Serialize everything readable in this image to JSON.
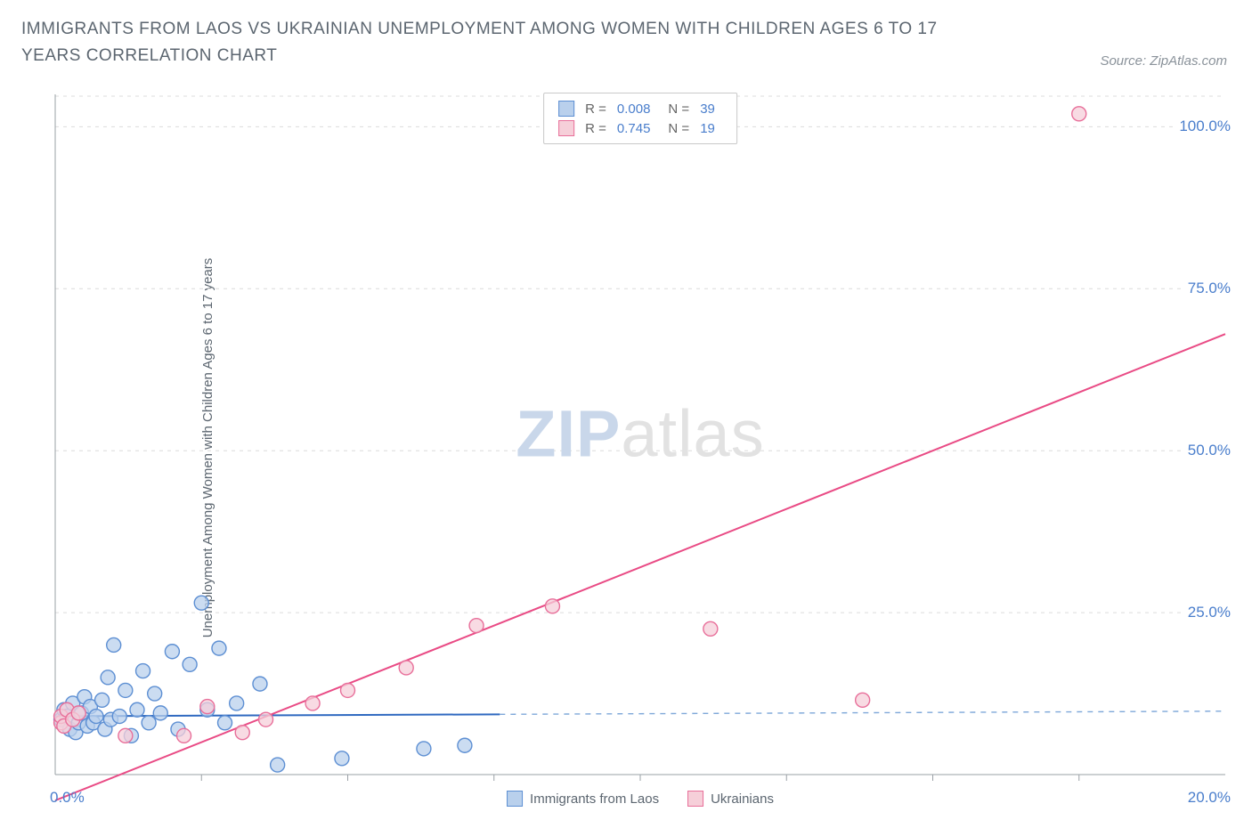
{
  "title": "IMMIGRANTS FROM LAOS VS UKRAINIAN UNEMPLOYMENT AMONG WOMEN WITH CHILDREN AGES 6 TO 17 YEARS CORRELATION CHART",
  "source": "Source: ZipAtlas.com",
  "ylabel": "Unemployment Among Women with Children Ages 6 to 17 years",
  "watermark": {
    "zip": "ZIP",
    "atlas": "atlas"
  },
  "chart": {
    "type": "scatter",
    "background_color": "#ffffff",
    "xlim": [
      0,
      20
    ],
    "ylim": [
      0,
      105
    ],
    "x_axis_min_label": "0.0%",
    "x_axis_max_label": "20.0%",
    "yticks": [
      {
        "v": 25,
        "label": "25.0%"
      },
      {
        "v": 50,
        "label": "50.0%"
      },
      {
        "v": 75,
        "label": "75.0%"
      },
      {
        "v": 100,
        "label": "100.0%"
      }
    ],
    "grid_color": "#dcdcdc",
    "axis_color": "#9aa0a6",
    "tick_color": "#9aa0a6",
    "regression_dash_color": "#7fa8d9",
    "marker_radius": 8,
    "marker_stroke_width": 1.4,
    "regression_line_width": 2,
    "series": [
      {
        "name": "Immigrants from Laos",
        "fill": "#b9d0ec",
        "stroke": "#5d8fd3",
        "line_color": "#2f69c0",
        "R": "0.008",
        "N": "39",
        "regression": {
          "x1": 0,
          "y1": 9.0,
          "x2": 7.6,
          "y2": 9.3,
          "extend_to": 20
        },
        "points": [
          {
            "x": 0.1,
            "y": 8.5
          },
          {
            "x": 0.15,
            "y": 10.0
          },
          {
            "x": 0.2,
            "y": 9.0
          },
          {
            "x": 0.25,
            "y": 7.0
          },
          {
            "x": 0.3,
            "y": 11.0
          },
          {
            "x": 0.35,
            "y": 6.5
          },
          {
            "x": 0.4,
            "y": 8.0
          },
          {
            "x": 0.45,
            "y": 9.5
          },
          {
            "x": 0.5,
            "y": 12.0
          },
          {
            "x": 0.55,
            "y": 7.5
          },
          {
            "x": 0.6,
            "y": 10.5
          },
          {
            "x": 0.65,
            "y": 8.0
          },
          {
            "x": 0.7,
            "y": 9.0
          },
          {
            "x": 0.8,
            "y": 11.5
          },
          {
            "x": 0.85,
            "y": 7.0
          },
          {
            "x": 0.9,
            "y": 15.0
          },
          {
            "x": 0.95,
            "y": 8.5
          },
          {
            "x": 1.0,
            "y": 20.0
          },
          {
            "x": 1.1,
            "y": 9.0
          },
          {
            "x": 1.2,
            "y": 13.0
          },
          {
            "x": 1.3,
            "y": 6.0
          },
          {
            "x": 1.4,
            "y": 10.0
          },
          {
            "x": 1.5,
            "y": 16.0
          },
          {
            "x": 1.6,
            "y": 8.0
          },
          {
            "x": 1.7,
            "y": 12.5
          },
          {
            "x": 1.8,
            "y": 9.5
          },
          {
            "x": 2.0,
            "y": 19.0
          },
          {
            "x": 2.1,
            "y": 7.0
          },
          {
            "x": 2.3,
            "y": 17.0
          },
          {
            "x": 2.5,
            "y": 26.5
          },
          {
            "x": 2.6,
            "y": 10.0
          },
          {
            "x": 2.8,
            "y": 19.5
          },
          {
            "x": 2.9,
            "y": 8.0
          },
          {
            "x": 3.1,
            "y": 11.0
          },
          {
            "x": 3.5,
            "y": 14.0
          },
          {
            "x": 3.8,
            "y": 1.5
          },
          {
            "x": 4.9,
            "y": 2.5
          },
          {
            "x": 6.3,
            "y": 4.0
          },
          {
            "x": 7.0,
            "y": 4.5
          }
        ]
      },
      {
        "name": "Ukrainians",
        "fill": "#f6cfd9",
        "stroke": "#e86f9a",
        "line_color": "#e94b85",
        "R": "0.745",
        "N": "19",
        "regression": {
          "x1": 0,
          "y1": -4.0,
          "x2": 20,
          "y2": 68.0
        },
        "points": [
          {
            "x": 0.1,
            "y": 8.0
          },
          {
            "x": 0.1,
            "y": 9.0
          },
          {
            "x": 0.15,
            "y": 7.5
          },
          {
            "x": 0.2,
            "y": 10.0
          },
          {
            "x": 0.3,
            "y": 8.5
          },
          {
            "x": 0.4,
            "y": 9.5
          },
          {
            "x": 1.2,
            "y": 6.0
          },
          {
            "x": 2.2,
            "y": 6.0
          },
          {
            "x": 2.6,
            "y": 10.5
          },
          {
            "x": 3.2,
            "y": 6.5
          },
          {
            "x": 3.6,
            "y": 8.5
          },
          {
            "x": 4.4,
            "y": 11.0
          },
          {
            "x": 5.0,
            "y": 13.0
          },
          {
            "x": 6.0,
            "y": 16.5
          },
          {
            "x": 7.2,
            "y": 23.0
          },
          {
            "x": 8.5,
            "y": 26.0
          },
          {
            "x": 11.2,
            "y": 22.5
          },
          {
            "x": 13.8,
            "y": 11.5
          },
          {
            "x": 17.5,
            "y": 102.0
          }
        ]
      }
    ]
  },
  "stat_box": {
    "labels": {
      "R": "R =",
      "N": "N ="
    }
  },
  "legend": {
    "items": [
      {
        "name": "Immigrants from Laos",
        "fill": "#b9d0ec",
        "stroke": "#5d8fd3"
      },
      {
        "name": "Ukrainians",
        "fill": "#f6cfd9",
        "stroke": "#e86f9a"
      }
    ]
  }
}
